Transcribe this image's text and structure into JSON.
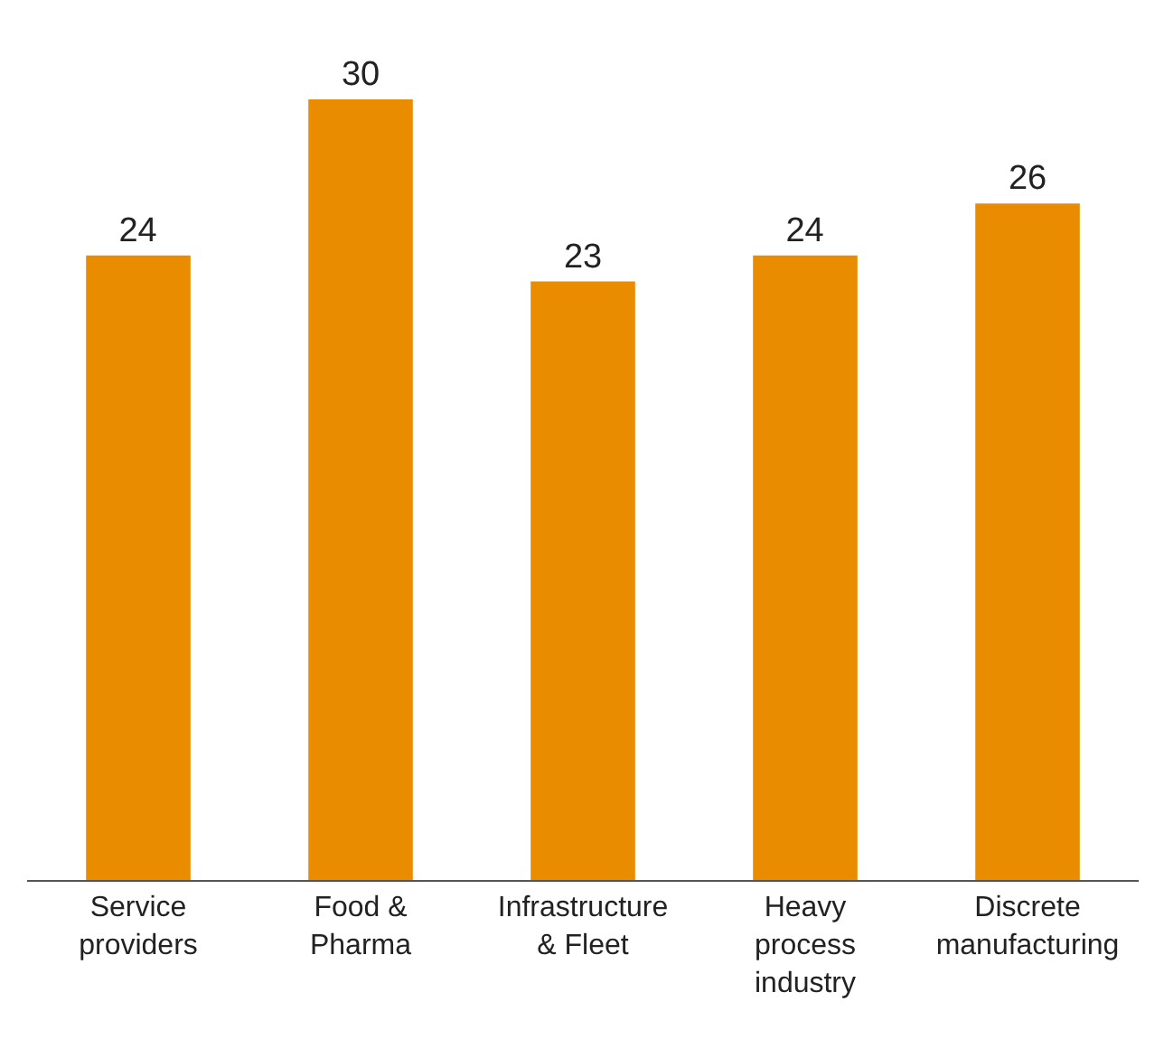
{
  "chart_data": {
    "type": "bar",
    "categories": [
      "Service providers",
      "Food & Pharma",
      "Infrastructure & Fleet",
      "Heavy process industry",
      "Discrete manufacturing"
    ],
    "values": [
      24,
      30,
      23,
      24,
      26
    ],
    "color": "#ea8c00",
    "data_labels": true
  }
}
